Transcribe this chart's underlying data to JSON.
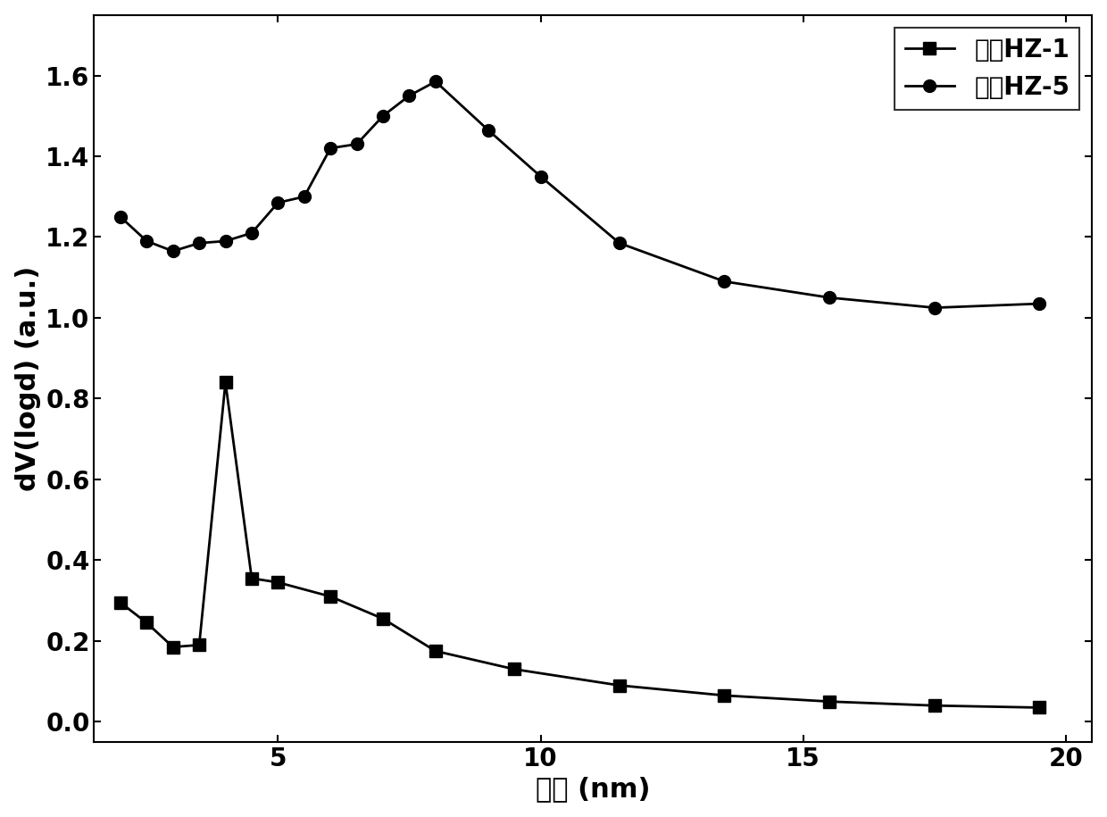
{
  "hz1_x": [
    2.0,
    2.5,
    3.0,
    3.5,
    4.0,
    4.5,
    5.0,
    6.0,
    7.0,
    8.0,
    9.5,
    11.5,
    13.5,
    15.5,
    17.5,
    19.5
  ],
  "hz1_y": [
    0.295,
    0.245,
    0.185,
    0.19,
    0.84,
    0.355,
    0.345,
    0.31,
    0.255,
    0.175,
    0.13,
    0.09,
    0.065,
    0.05,
    0.04,
    0.035
  ],
  "hz5_x": [
    2.0,
    2.5,
    3.0,
    3.5,
    4.0,
    4.5,
    5.0,
    5.5,
    6.0,
    6.5,
    7.0,
    7.5,
    8.0,
    9.0,
    10.0,
    11.5,
    13.5,
    15.5,
    17.5,
    19.5
  ],
  "hz5_y": [
    1.25,
    1.19,
    1.165,
    1.185,
    1.19,
    1.21,
    1.285,
    1.3,
    1.42,
    1.43,
    1.5,
    1.55,
    1.585,
    1.465,
    1.35,
    1.185,
    1.09,
    1.05,
    1.025,
    1.035
  ],
  "xlabel": "孔径 (nm)",
  "ylabel": "dV(logd) (a.u.)",
  "label_hz1": "样品HZ-1",
  "label_hz5": "样品HZ-5",
  "xlim": [
    1.5,
    20.5
  ],
  "ylim": [
    -0.05,
    1.75
  ],
  "xticks": [
    5,
    10,
    15,
    20
  ],
  "yticks": [
    0.0,
    0.2,
    0.4,
    0.6,
    0.8,
    1.0,
    1.2,
    1.4,
    1.6
  ],
  "line_color": "#000000",
  "bg_color": "#ffffff",
  "fontsize_label": 22,
  "fontsize_tick": 20,
  "fontsize_legend": 20,
  "linewidth": 2.0,
  "markersize_square": 10,
  "markersize_circle": 10
}
